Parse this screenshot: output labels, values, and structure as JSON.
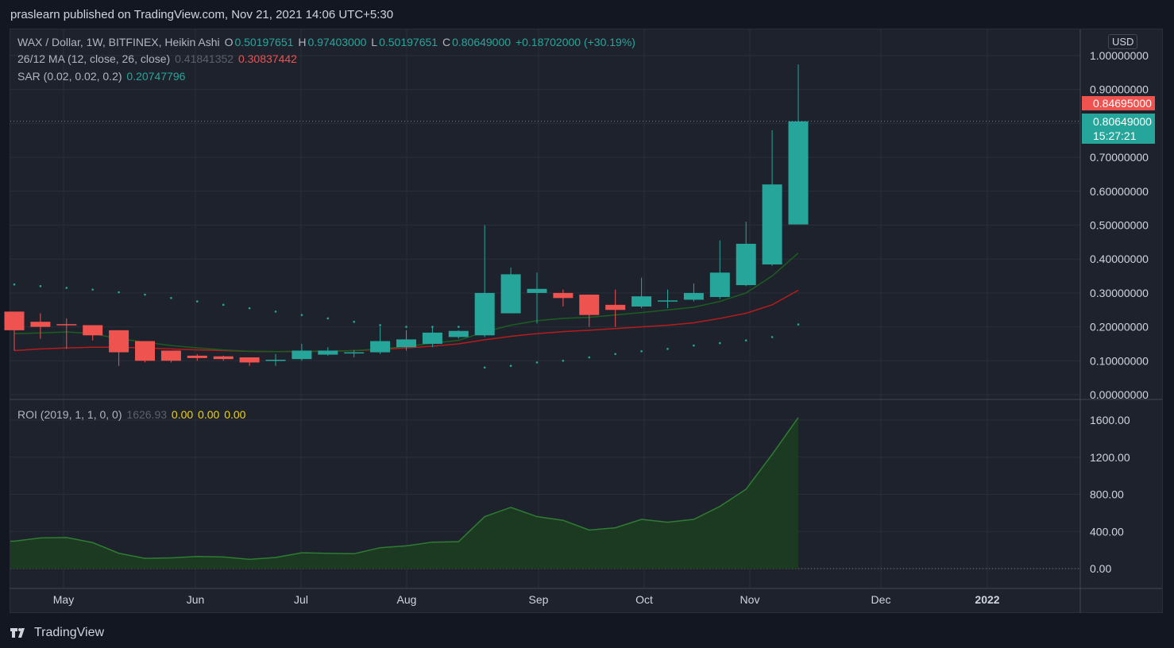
{
  "header": {
    "published": "praslearn published on TradingView.com, Nov 21, 2021 14:06 UTC+5:30"
  },
  "legend": {
    "symbol": "WAX / Dollar, 1W, BITFINEX, Heikin Ashi",
    "o_label": "O",
    "o_value": "0.50197651",
    "h_label": "H",
    "h_value": "0.97403000",
    "l_label": "L",
    "l_value": "0.50197651",
    "c_label": "C",
    "c_value": "0.80649000",
    "change": "+0.18702000 (+30.19%)",
    "ma_label": "26/12 MA (12, close, 26, close)",
    "ma_fast_value": "0.41841352",
    "ma_slow_value": "0.30837442",
    "sar_label": "SAR (0.02, 0.02, 0.2)",
    "sar_value": "0.20747796",
    "roi_label": "ROI (2019, 1, 1, 0, 0)",
    "roi_value": "1626.93",
    "roi_zero_1": "0.00",
    "roi_zero_2": "0.00",
    "roi_zero_3": "0.00"
  },
  "price_scale": {
    "currency": "USD",
    "ticks": [
      "1.00000000",
      "0.90000000",
      "0.70000000",
      "0.60000000",
      "0.50000000",
      "0.40000000",
      "0.30000000",
      "0.20000000",
      "0.10000000",
      "0.00000000"
    ],
    "tag_red": "0.84695000",
    "tag_teal_price": "0.80649000",
    "tag_teal_timer": "15:27:21"
  },
  "roi_scale": {
    "ticks": [
      "1600.00",
      "1200.00",
      "800.00",
      "400.00",
      "0.00"
    ]
  },
  "time_axis": {
    "labels": [
      "May",
      "Jun",
      "Jul",
      "Aug",
      "Sep",
      "Oct",
      "Nov",
      "Dec",
      "2022"
    ]
  },
  "colors": {
    "up": "#26a69a",
    "down": "#ef5350",
    "ma_fast": "#1b5e20",
    "ma_slow": "#b71c1c",
    "sar": "#26a69a",
    "roi_fill": "#1b3a21",
    "roi_line": "#2e7d32"
  },
  "footer": {
    "brand": "TradingView"
  },
  "chart_data": [
    {
      "type": "candlestick",
      "title": "WAX / Dollar, 1W, BITFINEX, Heikin Ashi",
      "ylim": [
        0,
        1.0
      ],
      "candles": [
        {
          "o": 0.245,
          "h": 0.245,
          "l": 0.13,
          "c": 0.19
        },
        {
          "o": 0.215,
          "h": 0.24,
          "l": 0.165,
          "c": 0.2
        },
        {
          "o": 0.208,
          "h": 0.225,
          "l": 0.135,
          "c": 0.205
        },
        {
          "o": 0.205,
          "h": 0.205,
          "l": 0.16,
          "c": 0.175
        },
        {
          "o": 0.19,
          "h": 0.19,
          "l": 0.085,
          "c": 0.125
        },
        {
          "o": 0.158,
          "h": 0.158,
          "l": 0.095,
          "c": 0.1
        },
        {
          "o": 0.13,
          "h": 0.13,
          "l": 0.095,
          "c": 0.1
        },
        {
          "o": 0.115,
          "h": 0.12,
          "l": 0.1,
          "c": 0.108
        },
        {
          "o": 0.113,
          "h": 0.115,
          "l": 0.1,
          "c": 0.105
        },
        {
          "o": 0.11,
          "h": 0.11,
          "l": 0.085,
          "c": 0.095
        },
        {
          "o": 0.1,
          "h": 0.12,
          "l": 0.085,
          "c": 0.103
        },
        {
          "o": 0.105,
          "h": 0.15,
          "l": 0.1,
          "c": 0.13
        },
        {
          "o": 0.118,
          "h": 0.14,
          "l": 0.115,
          "c": 0.13
        },
        {
          "o": 0.124,
          "h": 0.132,
          "l": 0.11,
          "c": 0.125
        },
        {
          "o": 0.125,
          "h": 0.2,
          "l": 0.12,
          "c": 0.158
        },
        {
          "o": 0.14,
          "h": 0.19,
          "l": 0.13,
          "c": 0.163
        },
        {
          "o": 0.15,
          "h": 0.2,
          "l": 0.14,
          "c": 0.183
        },
        {
          "o": 0.17,
          "h": 0.19,
          "l": 0.165,
          "c": 0.188
        },
        {
          "o": 0.175,
          "h": 0.5,
          "l": 0.17,
          "c": 0.3
        },
        {
          "o": 0.24,
          "h": 0.375,
          "l": 0.24,
          "c": 0.355
        },
        {
          "o": 0.3,
          "h": 0.36,
          "l": 0.21,
          "c": 0.312
        },
        {
          "o": 0.3,
          "h": 0.31,
          "l": 0.26,
          "c": 0.285
        },
        {
          "o": 0.295,
          "h": 0.295,
          "l": 0.2,
          "c": 0.235
        },
        {
          "o": 0.265,
          "h": 0.31,
          "l": 0.2,
          "c": 0.25
        },
        {
          "o": 0.26,
          "h": 0.345,
          "l": 0.255,
          "c": 0.29
        },
        {
          "o": 0.275,
          "h": 0.31,
          "l": 0.255,
          "c": 0.278
        },
        {
          "o": 0.28,
          "h": 0.328,
          "l": 0.275,
          "c": 0.3
        },
        {
          "o": 0.288,
          "h": 0.455,
          "l": 0.282,
          "c": 0.36
        },
        {
          "o": 0.323,
          "h": 0.51,
          "l": 0.32,
          "c": 0.445
        },
        {
          "o": 0.384,
          "h": 0.78,
          "l": 0.38,
          "c": 0.62
        },
        {
          "o": 0.502,
          "h": 0.974,
          "l": 0.502,
          "c": 0.806
        }
      ],
      "ma_fast": [
        0.18,
        0.182,
        0.185,
        0.18,
        0.165,
        0.155,
        0.145,
        0.138,
        0.132,
        0.128,
        0.127,
        0.127,
        0.128,
        0.13,
        0.135,
        0.142,
        0.152,
        0.16,
        0.185,
        0.205,
        0.218,
        0.225,
        0.228,
        0.235,
        0.242,
        0.25,
        0.258,
        0.275,
        0.3,
        0.35,
        0.418
      ],
      "ma_slow": [
        0.13,
        0.135,
        0.138,
        0.14,
        0.14,
        0.138,
        0.135,
        0.132,
        0.13,
        0.128,
        0.127,
        0.128,
        0.128,
        0.13,
        0.133,
        0.138,
        0.143,
        0.15,
        0.162,
        0.172,
        0.18,
        0.186,
        0.19,
        0.195,
        0.2,
        0.205,
        0.212,
        0.225,
        0.24,
        0.265,
        0.308
      ],
      "sar": [
        0.325,
        0.32,
        0.315,
        0.31,
        0.302,
        0.295,
        0.285,
        0.275,
        0.265,
        0.255,
        0.245,
        0.235,
        0.225,
        0.215,
        0.205,
        0.2,
        0.2,
        0.2,
        0.08,
        0.085,
        0.095,
        0.1,
        0.11,
        0.12,
        0.128,
        0.135,
        0.145,
        0.152,
        0.16,
        0.17,
        0.207
      ]
    },
    {
      "type": "area",
      "title": "ROI (2019, 1, 1, 0, 0)",
      "ylim": [
        0,
        1600
      ],
      "values": [
        295,
        330,
        335,
        280,
        165,
        110,
        115,
        130,
        125,
        100,
        120,
        170,
        165,
        160,
        225,
        245,
        285,
        290,
        560,
        660,
        560,
        520,
        415,
        440,
        530,
        500,
        530,
        670,
        855,
        1230,
        1627
      ]
    }
  ]
}
